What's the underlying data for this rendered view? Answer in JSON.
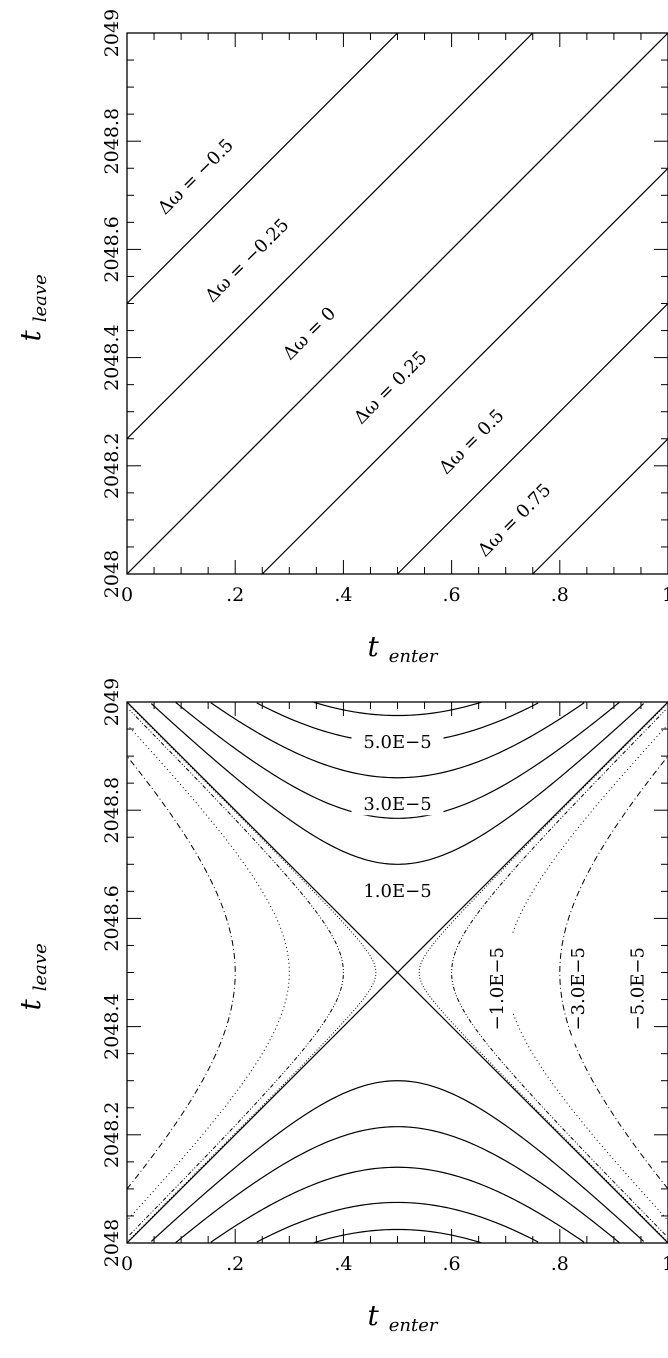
{
  "chart_data": [
    {
      "type": "line",
      "panel": "top",
      "xlabel_main": "t",
      "xlabel_sub": "enter",
      "ylabel_main": "t",
      "ylabel_sub": "leave",
      "xlim": [
        0,
        1
      ],
      "ylim": [
        2048,
        2049
      ],
      "x_ticks": [
        "0",
        ".2",
        ".4",
        ".6",
        ".8",
        "1"
      ],
      "y_ticks": [
        "2048",
        "2048.2",
        "2048.4",
        "2048.6",
        "2048.8",
        "2049"
      ],
      "series": [
        {
          "label": "Δω = −0.5",
          "offset": -0.5
        },
        {
          "label": "Δω = −0.25",
          "offset": -0.25
        },
        {
          "label": "Δω = 0",
          "offset": 0
        },
        {
          "label": "Δω = 0.25",
          "offset": 0.25
        },
        {
          "label": "Δω = 0.5",
          "offset": 0.5
        },
        {
          "label": "Δω = 0.75",
          "offset": 0.75
        }
      ]
    },
    {
      "type": "contour",
      "panel": "bottom",
      "xlabel_main": "t",
      "xlabel_sub": "enter",
      "ylabel_main": "t",
      "ylabel_sub": "leave",
      "xlim": [
        0,
        1
      ],
      "ylim": [
        2048,
        2049
      ],
      "x_ticks": [
        "0",
        ".2",
        ".4",
        ".6",
        ".8",
        "1"
      ],
      "y_ticks": [
        "2048",
        "2048.2",
        "2048.4",
        "2048.6",
        "2048.8",
        "2049"
      ],
      "positive_levels": [
        "1.0E−5",
        "3.0E−5",
        "5.0E−5"
      ],
      "negative_levels": [
        "−1.0E−5",
        "−3.0E−5",
        "−5.0E−5"
      ],
      "positive_contour_min_y_offsets": [
        0.3,
        0.215,
        0.14,
        0.075,
        0.025
      ],
      "negative_contour_x_offsets": [
        0.2,
        0.3,
        0.4,
        0.46
      ],
      "line_styles": {
        "positive": "solid",
        "negative": "dotted"
      }
    }
  ]
}
